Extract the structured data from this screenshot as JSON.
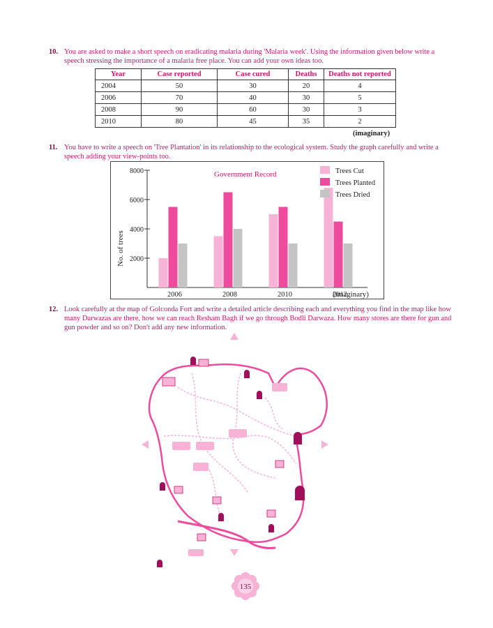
{
  "q10": {
    "number": "10.",
    "text": "You are asked to make a short speech on eradicating malaria during 'Malaria week'. Using the information given below write a speech stressing the importance of a malaria free place. You can add your own ideas too.",
    "table": {
      "headers": [
        "Year",
        "Case reported",
        "Case cured",
        "Deaths",
        "Deaths not reported"
      ],
      "rows": [
        [
          "2004",
          "50",
          "30",
          "20",
          "4"
        ],
        [
          "2006",
          "70",
          "40",
          "30",
          "5"
        ],
        [
          "2008",
          "90",
          "60",
          "30",
          "3"
        ],
        [
          "2010",
          "80",
          "45",
          "35",
          "2"
        ]
      ]
    },
    "note": "(imaginary)"
  },
  "q11": {
    "number": "11.",
    "text": "You have to write a speech on 'Tree Plantation' in its relationship to the ecological system. Study the graph carefully and write a speech adding your view-points too."
  },
  "chart_data": {
    "type": "bar",
    "title": "Government Record",
    "ylabel": "No. of trees",
    "xlabel": "",
    "note": "(imaginary)",
    "categories": [
      "2006",
      "2008",
      "2010",
      "2012"
    ],
    "series": [
      {
        "name": "Trees Cut",
        "color": "#f6b3d6",
        "values": [
          2000,
          3500,
          5000,
          6800
        ]
      },
      {
        "name": "Trees Planted",
        "color": "#ee4a9e",
        "values": [
          5500,
          6500,
          5500,
          4500
        ]
      },
      {
        "name": "Trees Dried",
        "color": "#c4c4c4",
        "values": [
          3000,
          4000,
          3000,
          3000
        ]
      }
    ],
    "yticks": [
      2000,
      4000,
      6000,
      8000
    ],
    "ylim": [
      0,
      8000
    ],
    "legend_position": "top-right"
  },
  "q12": {
    "number": "12.",
    "text": "Look carefully at the map of Golconda Fort and write a detailed article describing each and everything you find in the map like how many Darwazas are there, how we can reach Resham Bagh if we go through Bodli Darwaza. How many stores are there for gun and gun powder and so on? Don't add any new information."
  },
  "page_number": "135",
  "colors": {
    "accent": "#c8176a",
    "pink_light": "#f6b3d6",
    "pink_dark": "#ee4a9e",
    "grey": "#c4c4c4"
  }
}
